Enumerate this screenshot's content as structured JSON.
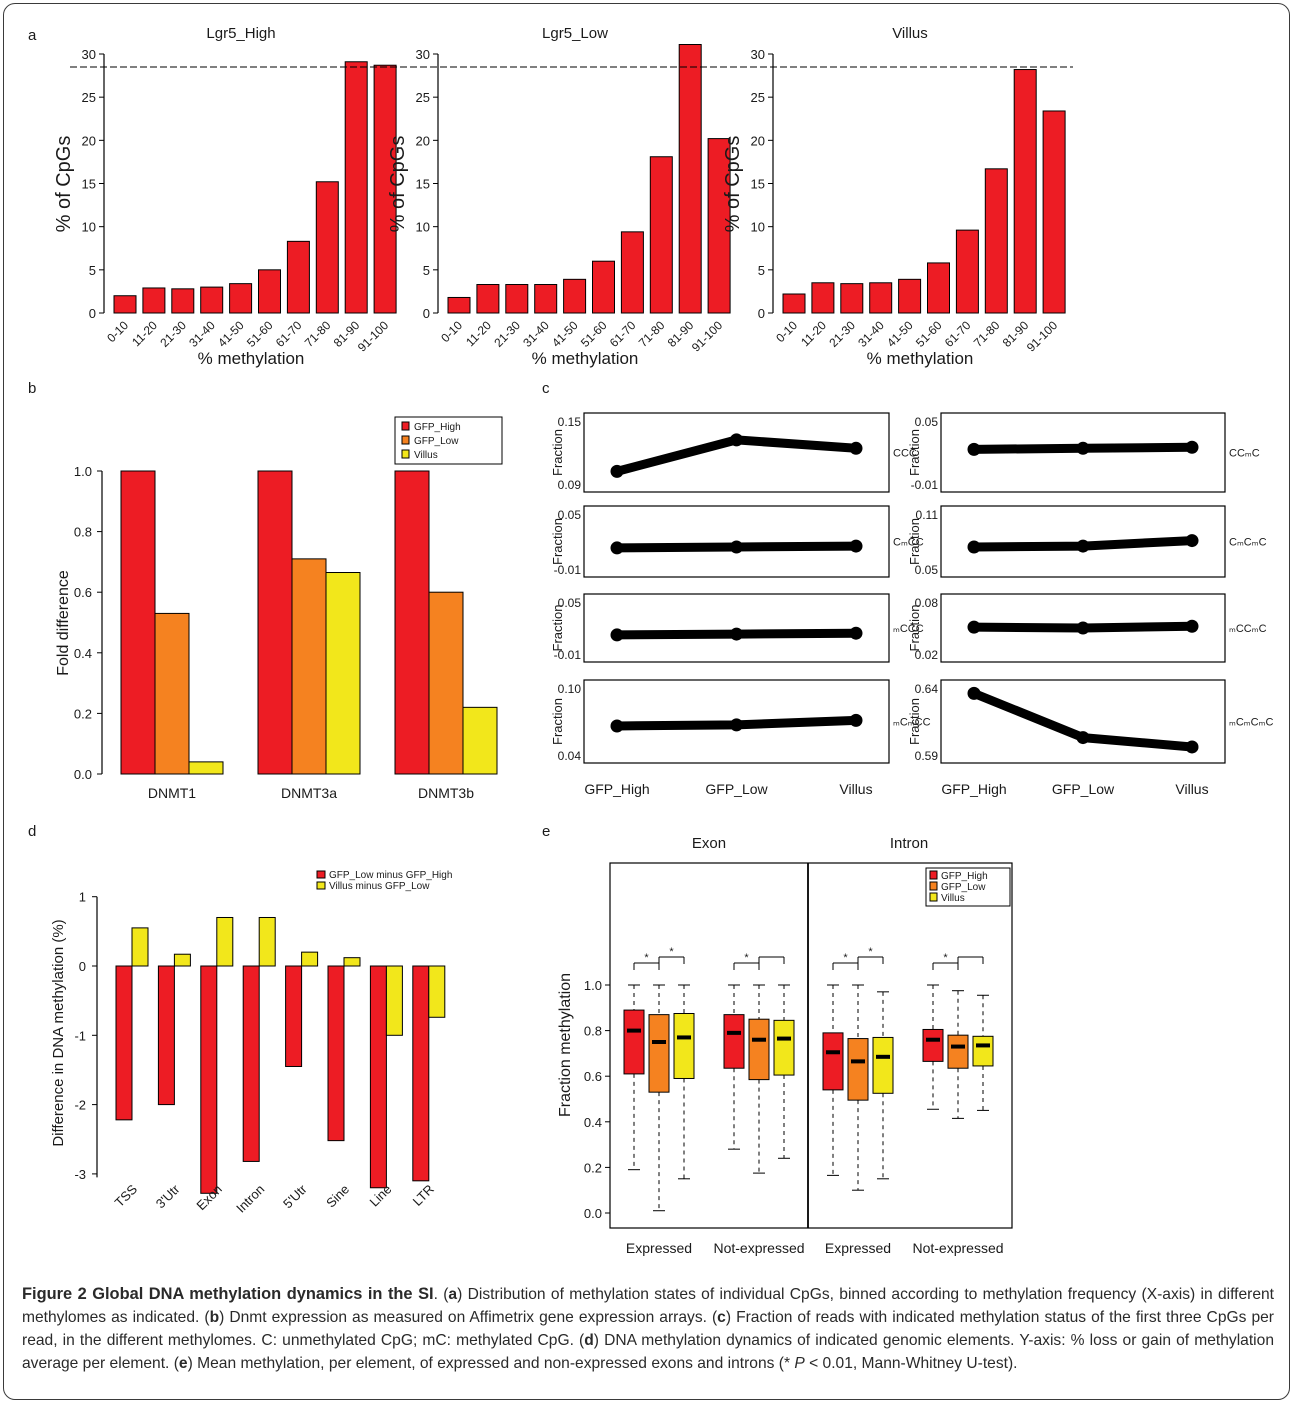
{
  "panels": {
    "a": "a",
    "b": "b",
    "c": "c",
    "d": "d",
    "e": "e"
  },
  "colors": {
    "red": "#ed1c24",
    "orange": "#f58220",
    "yellow": "#f2e71b",
    "line": "#000000"
  },
  "chart_data": [
    {
      "id": "a",
      "type": "bar",
      "ylabel": "% of CpGs",
      "xlabel": "% methylation",
      "ylim": [
        0,
        30
      ],
      "yticks": [
        0,
        5,
        10,
        15,
        20,
        25,
        30
      ],
      "categories": [
        "0-10",
        "11-20",
        "21-30",
        "31-40",
        "41-50",
        "51-60",
        "61-70",
        "71-80",
        "81-90",
        "91-100"
      ],
      "reference_line": 28.5,
      "series": [
        {
          "name": "Lgr5_High",
          "values": [
            2.0,
            2.9,
            2.8,
            3.0,
            3.4,
            5.0,
            8.3,
            15.2,
            29.1,
            28.7
          ]
        },
        {
          "name": "Lgr5_Low",
          "values": [
            1.8,
            3.3,
            3.3,
            3.3,
            3.9,
            6.0,
            9.4,
            18.1,
            31.1,
            20.2
          ]
        },
        {
          "name": "Villus",
          "values": [
            2.2,
            3.5,
            3.4,
            3.5,
            3.9,
            5.8,
            9.6,
            16.7,
            28.2,
            23.4
          ]
        }
      ]
    },
    {
      "id": "b",
      "type": "bar",
      "ylabel": "Fold difference",
      "ylim": [
        0,
        1.0
      ],
      "yticks": [
        "0.0",
        "0.2",
        "0.4",
        "0.6",
        "0.8",
        "1.0"
      ],
      "categories": [
        "DNMT1",
        "DNMT3a",
        "DNMT3b"
      ],
      "legend": "top-right",
      "series": [
        {
          "name": "GFP_High",
          "values": [
            1.0,
            1.0,
            1.0
          ]
        },
        {
          "name": "GFP_Low",
          "values": [
            0.53,
            0.71,
            0.6
          ]
        },
        {
          "name": "Villus",
          "values": [
            0.04,
            0.665,
            0.22
          ]
        }
      ]
    },
    {
      "id": "c",
      "type": "line",
      "ylabel": "Fraction",
      "x": [
        "GFP_High",
        "GFP_Low",
        "Villus"
      ],
      "subplots": [
        {
          "label": "CCC",
          "ylim": [
            0.09,
            0.15
          ],
          "yticks": [
            "0.15",
            "0.09"
          ],
          "values": [
            0.102,
            0.132,
            0.124
          ]
        },
        {
          "label": "CCₘC",
          "ylim": [
            -0.01,
            0.05
          ],
          "yticks": [
            "0.05",
            "-0.01"
          ],
          "values": [
            0.023,
            0.024,
            0.025
          ]
        },
        {
          "label": "CₘCC",
          "ylim": [
            -0.01,
            0.05
          ],
          "yticks": [
            "0.05",
            "-0.01"
          ],
          "values": [
            0.013,
            0.014,
            0.015
          ]
        },
        {
          "label": "CₘCₘC",
          "ylim": [
            0.05,
            0.11
          ],
          "yticks": [
            "0.11",
            "0.05"
          ],
          "values": [
            0.074,
            0.075,
            0.081
          ]
        },
        {
          "label": "ₘCCC",
          "ylim": [
            -0.01,
            0.05
          ],
          "yticks": [
            "0.05",
            "-0.01"
          ],
          "values": [
            0.012,
            0.013,
            0.014
          ]
        },
        {
          "label": "ₘCCₘC",
          "ylim": [
            0.02,
            0.08
          ],
          "yticks": [
            "0.08",
            "0.02"
          ],
          "values": [
            0.051,
            0.05,
            0.052
          ]
        },
        {
          "label": "ₘCₘCC",
          "ylim": [
            0.04,
            0.1
          ],
          "yticks": [
            "0.10",
            "0.04"
          ],
          "values": [
            0.066,
            0.067,
            0.071
          ]
        },
        {
          "label": "ₘCₘCₘC",
          "ylim": [
            0.59,
            0.64
          ],
          "yticks": [
            "0.64",
            "0.59"
          ],
          "values": [
            0.636,
            0.603,
            0.596
          ]
        }
      ]
    },
    {
      "id": "d",
      "type": "bar",
      "ylabel": "Difference in DNA methylation (%)",
      "ylim": [
        -3.3,
        1.0
      ],
      "yticks": [
        "1",
        "0",
        "-1",
        "-2",
        "-3"
      ],
      "categories": [
        "TSS",
        "3'Utr",
        "Exon",
        "Intron",
        "5'Utr",
        "Sine",
        "Line",
        "LTR"
      ],
      "legend": "top",
      "series": [
        {
          "name": "GFP_Low minus GFP_High",
          "values": [
            -2.22,
            -2.0,
            -3.28,
            -2.82,
            -1.45,
            -2.52,
            -3.2,
            -3.1
          ]
        },
        {
          "name": "Villus minus GFP_Low",
          "values": [
            0.55,
            0.17,
            0.7,
            0.7,
            0.2,
            0.12,
            -1.0,
            -0.74
          ]
        }
      ]
    },
    {
      "id": "e",
      "type": "box",
      "ylabel": "Fraction methylation",
      "ylim": [
        0,
        1.0
      ],
      "yticks": [
        "0.0",
        "0.2",
        "0.4",
        "0.6",
        "0.8",
        "1.0"
      ],
      "facets": [
        "Exon",
        "Intron"
      ],
      "groups": [
        "Expressed",
        "Not-expressed",
        "Expressed",
        "Not-expressed"
      ],
      "series_names": [
        "GFP_High",
        "GFP_Low",
        "Villus"
      ],
      "boxes": [
        [
          {
            "min": 0.19,
            "q1": 0.61,
            "med": 0.8,
            "q3": 0.89,
            "max": 1.0
          },
          {
            "min": 0.01,
            "q1": 0.53,
            "med": 0.75,
            "q3": 0.87,
            "max": 1.0
          },
          {
            "min": 0.15,
            "q1": 0.59,
            "med": 0.77,
            "q3": 0.875,
            "max": 1.0
          }
        ],
        [
          {
            "min": 0.28,
            "q1": 0.635,
            "med": 0.79,
            "q3": 0.87,
            "max": 1.0
          },
          {
            "min": 0.175,
            "q1": 0.585,
            "med": 0.76,
            "q3": 0.85,
            "max": 1.0
          },
          {
            "min": 0.24,
            "q1": 0.605,
            "med": 0.765,
            "q3": 0.845,
            "max": 1.0
          }
        ],
        [
          {
            "min": 0.165,
            "q1": 0.54,
            "med": 0.705,
            "q3": 0.79,
            "max": 1.0
          },
          {
            "min": 0.1,
            "q1": 0.495,
            "med": 0.665,
            "q3": 0.765,
            "max": 1.0
          },
          {
            "min": 0.15,
            "q1": 0.525,
            "med": 0.685,
            "q3": 0.77,
            "max": 0.97
          }
        ],
        [
          {
            "min": 0.455,
            "q1": 0.665,
            "med": 0.76,
            "q3": 0.805,
            "max": 1.0
          },
          {
            "min": 0.415,
            "q1": 0.635,
            "med": 0.73,
            "q3": 0.78,
            "max": 0.975
          },
          {
            "min": 0.45,
            "q1": 0.645,
            "med": 0.735,
            "q3": 0.775,
            "max": 0.955
          }
        ]
      ],
      "significance": "*",
      "legend": "top-right"
    }
  ],
  "caption": {
    "title": "Figure 2 Global DNA methylation dynamics in the SI",
    "p1": ". (",
    "a_lbl": "a",
    "p2": ") Distribution of methylation states of individual CpGs, binned according to methylation frequency (X-axis) in different methylomes as indicated. (",
    "b_lbl": "b",
    "p3": ") Dnmt expression as measured on Affimetrix gene expression arrays. (",
    "c_lbl": "c",
    "p4": ") Fraction of reads with indicated methylation status of the first three CpGs per read, in the different methylomes. C: unmethylated CpG; mC: methylated CpG. (",
    "d_lbl": "d",
    "p5": ") DNA methylation dynamics of indicated genomic elements. Y-axis: % loss or gain of methylation average per element. (",
    "e_lbl": "e",
    "p6": ") Mean methylation, per element, of expressed and non-expressed exons and introns (* ",
    "p_sym": "P",
    "p7": " < 0.01, Mann-Whitney U-test)."
  }
}
